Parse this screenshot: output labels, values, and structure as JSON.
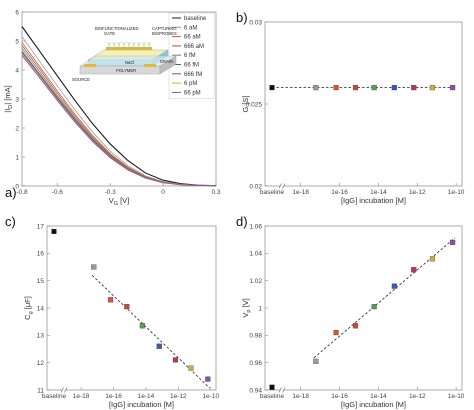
{
  "chart_data": [
    {
      "id": "a",
      "type": "line",
      "panel_label": "a)",
      "xlabel": "V",
      "xlabel_sub": "G",
      "xlabel_unit": " [V]",
      "ylabel": "|I",
      "ylabel_sub": "D",
      "ylabel_unit": "| [mA]",
      "xlim": [
        -0.8,
        0.3
      ],
      "ylim": [
        0,
        6
      ],
      "x_ticks": [
        -0.8,
        -0.6,
        -0.3,
        0,
        0.3
      ],
      "y_ticks": [
        0,
        1,
        2,
        3,
        4,
        5,
        6
      ],
      "x_tick_labels": [
        "-0.8",
        "-0.6",
        "-0.3",
        "0",
        "0.3"
      ],
      "y_tick_labels": [
        "0",
        "1",
        "2",
        "3",
        "4",
        "5",
        "6"
      ],
      "legend_position": "top-right",
      "x": [
        -0.8,
        -0.7,
        -0.6,
        -0.5,
        -0.4,
        -0.3,
        -0.2,
        -0.1,
        0.0,
        0.1,
        0.2,
        0.3
      ],
      "series": [
        {
          "name": "baseline",
          "color": "#1a1a1a",
          "values": [
            5.5,
            4.65,
            3.8,
            2.95,
            2.15,
            1.45,
            0.88,
            0.45,
            0.2,
            0.08,
            0.03,
            0.01
          ]
        },
        {
          "name": "6 aM",
          "color": "#9a9a9a",
          "values": [
            5.15,
            4.3,
            3.45,
            2.62,
            1.86,
            1.2,
            0.7,
            0.35,
            0.15,
            0.06,
            0.02,
            0.01
          ]
        },
        {
          "name": "66 aM",
          "color": "#d9533c",
          "values": [
            4.95,
            4.12,
            3.28,
            2.48,
            1.74,
            1.12,
            0.65,
            0.32,
            0.14,
            0.05,
            0.02,
            0.01
          ]
        },
        {
          "name": "666 aM",
          "color": "#c44a3c",
          "values": [
            4.85,
            4.03,
            3.2,
            2.41,
            1.69,
            1.08,
            0.62,
            0.31,
            0.13,
            0.05,
            0.02,
            0.01
          ]
        },
        {
          "name": "6 fM",
          "color": "#4ea14e",
          "values": [
            4.75,
            3.94,
            3.12,
            2.35,
            1.64,
            1.05,
            0.6,
            0.3,
            0.13,
            0.05,
            0.02,
            0.01
          ]
        },
        {
          "name": "66 fM",
          "color": "#3b59b6",
          "values": [
            4.65,
            3.86,
            3.06,
            2.3,
            1.6,
            1.02,
            0.58,
            0.29,
            0.12,
            0.05,
            0.02,
            0.01
          ]
        },
        {
          "name": "666 fM",
          "color": "#b53a5a",
          "values": [
            4.6,
            3.82,
            3.02,
            2.26,
            1.57,
            1.0,
            0.57,
            0.28,
            0.12,
            0.05,
            0.02,
            0.01
          ]
        },
        {
          "name": "6 pM",
          "color": "#c9b13a",
          "values": [
            4.55,
            3.77,
            2.98,
            2.23,
            1.55,
            0.99,
            0.56,
            0.28,
            0.12,
            0.05,
            0.02,
            0.01
          ]
        },
        {
          "name": "66 pM",
          "color": "#8a4fb0",
          "values": [
            4.5,
            3.73,
            2.95,
            2.2,
            1.53,
            0.97,
            0.55,
            0.27,
            0.11,
            0.04,
            0.02,
            0.01
          ]
        }
      ],
      "inset": {
        "labels": [
          "BIOFUNCTIONALIZED",
          "GATE",
          "CAPTURING",
          "BIOPROBES",
          "NaCl",
          "SOURCE",
          "POLYMER",
          "DRAIN"
        ]
      }
    },
    {
      "id": "b",
      "type": "scatter",
      "panel_label": "b)",
      "xlabel": "[IgG] incubation [M]",
      "ylabel": "G [S]",
      "xlim_exp": [
        -18.5,
        -9.8
      ],
      "ylim": [
        0.02,
        0.03
      ],
      "y_ticks": [
        0.02,
        0.025,
        0.03
      ],
      "y_tick_labels": [
        "0.02",
        "0.025",
        "0.03"
      ],
      "x_ticks": [
        -18,
        -16,
        -14,
        -12,
        -10
      ],
      "x_tick_labels": [
        "1e-18",
        "1e-16",
        "1e-14",
        "1e-12",
        "1e-10"
      ],
      "baseline_label": "baseline",
      "fit_line": true,
      "points": [
        {
          "label": "baseline",
          "x": null,
          "y": 0.026,
          "color": "#111111"
        },
        {
          "label": "6 aM",
          "x": -17.22,
          "y": 0.026,
          "color": "#9a9a9a"
        },
        {
          "label": "66 aM",
          "x": -16.18,
          "y": 0.026,
          "color": "#d9533c"
        },
        {
          "label": "666 aM",
          "x": -15.18,
          "y": 0.026,
          "color": "#c44a3c"
        },
        {
          "label": "6 fM",
          "x": -14.22,
          "y": 0.026,
          "color": "#4ea14e"
        },
        {
          "label": "66 fM",
          "x": -13.18,
          "y": 0.026,
          "color": "#3b59b6"
        },
        {
          "label": "666 fM",
          "x": -12.18,
          "y": 0.026,
          "color": "#b53a5a"
        },
        {
          "label": "6 pM",
          "x": -11.22,
          "y": 0.026,
          "color": "#c9b13a"
        },
        {
          "label": "66 pM",
          "x": -10.18,
          "y": 0.026,
          "color": "#8a4fb0"
        }
      ]
    },
    {
      "id": "c",
      "type": "scatter",
      "panel_label": "c)",
      "xlabel": "[IgG] incubation [M]",
      "ylabel": "C",
      "ylabel_sub": "g",
      "ylabel_unit": " [μF]",
      "xlim_exp": [
        -18.5,
        -9.8
      ],
      "ylim": [
        11,
        17
      ],
      "y_ticks": [
        11,
        12,
        13,
        14,
        15,
        16,
        17
      ],
      "y_tick_labels": [
        "11",
        "12",
        "13",
        "14",
        "15",
        "16",
        "17"
      ],
      "x_ticks": [
        -18,
        -16,
        -14,
        -12,
        -10
      ],
      "x_tick_labels": [
        "1e-18",
        "1e-16",
        "1e-14",
        "1e-12",
        "1e-10"
      ],
      "baseline_label": "baseline",
      "fit_line": true,
      "points": [
        {
          "label": "baseline",
          "x": null,
          "y": 16.8,
          "color": "#111111"
        },
        {
          "label": "6 aM",
          "x": -17.22,
          "y": 15.5,
          "color": "#9a9a9a"
        },
        {
          "label": "66 aM",
          "x": -16.18,
          "y": 14.3,
          "color": "#d9533c"
        },
        {
          "label": "666 aM",
          "x": -15.18,
          "y": 14.05,
          "color": "#c44a3c"
        },
        {
          "label": "6 fM",
          "x": -14.22,
          "y": 13.35,
          "color": "#4ea14e"
        },
        {
          "label": "66 fM",
          "x": -13.18,
          "y": 12.6,
          "color": "#3b59b6"
        },
        {
          "label": "666 fM",
          "x": -12.18,
          "y": 12.1,
          "color": "#b53a5a"
        },
        {
          "label": "6 pM",
          "x": -11.22,
          "y": 11.8,
          "color": "#c9b13a"
        },
        {
          "label": "66 pM",
          "x": -10.18,
          "y": 11.4,
          "color": "#8a4fb0"
        }
      ]
    },
    {
      "id": "d",
      "type": "scatter",
      "panel_label": "d)",
      "xlabel": "[IgG] incubation [M]",
      "ylabel": "V",
      "ylabel_sub": "p",
      "ylabel_unit": " [V]",
      "xlim_exp": [
        -18.5,
        -9.8
      ],
      "ylim": [
        0.94,
        1.06
      ],
      "y_ticks": [
        0.94,
        0.96,
        0.98,
        1.0,
        1.02,
        1.04,
        1.06
      ],
      "y_tick_labels": [
        "0.94",
        "0.96",
        "0.98",
        "1",
        "1.02",
        "1.04",
        "1.06"
      ],
      "x_ticks": [
        -18,
        -16,
        -14,
        -12,
        -10
      ],
      "x_tick_labels": [
        "1e-18",
        "1e-16",
        "1e-14",
        "1e-12",
        "1e-10"
      ],
      "baseline_label": "baseline",
      "fit_line": true,
      "points": [
        {
          "label": "baseline",
          "x": null,
          "y": 0.942,
          "color": "#111111"
        },
        {
          "label": "6 aM",
          "x": -17.22,
          "y": 0.961,
          "color": "#9a9a9a"
        },
        {
          "label": "66 aM",
          "x": -16.18,
          "y": 0.982,
          "color": "#d9533c"
        },
        {
          "label": "666 aM",
          "x": -15.18,
          "y": 0.987,
          "color": "#c44a3c"
        },
        {
          "label": "6 fM",
          "x": -14.22,
          "y": 1.001,
          "color": "#4ea14e"
        },
        {
          "label": "66 fM",
          "x": -13.18,
          "y": 1.016,
          "color": "#3b59b6"
        },
        {
          "label": "666 fM",
          "x": -12.18,
          "y": 1.028,
          "color": "#b53a5a"
        },
        {
          "label": "6 pM",
          "x": -11.22,
          "y": 1.036,
          "color": "#c9b13a"
        },
        {
          "label": "66 pM",
          "x": -10.18,
          "y": 1.048,
          "color": "#8a4fb0"
        }
      ]
    }
  ]
}
